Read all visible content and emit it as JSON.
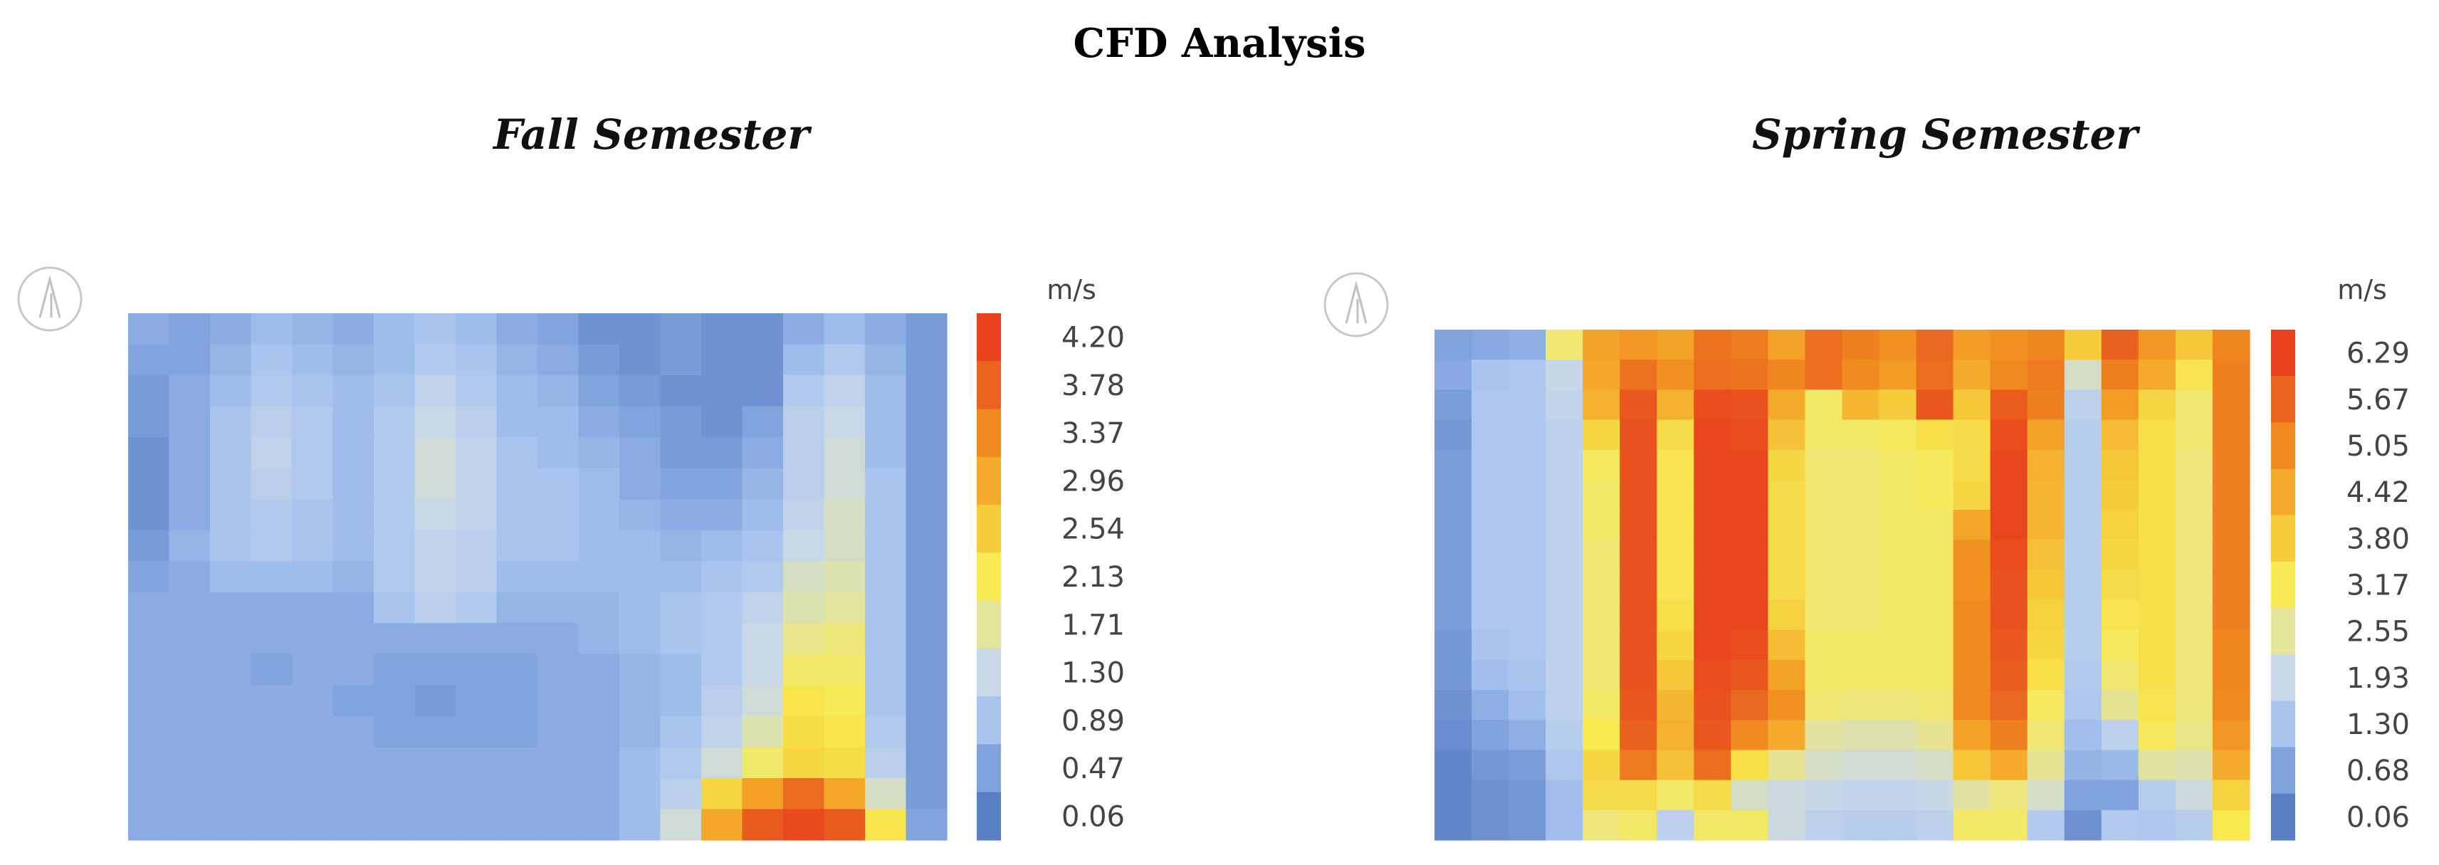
{
  "page_title": "CFD Analysis",
  "icons": {
    "north_arrow": "north-arrow-icon",
    "north_letter": "A"
  },
  "chart_data": [
    {
      "type": "heatmap",
      "title": "Fall Semester",
      "unit": "m/s",
      "colorbar": {
        "ticks": [
          "4.20",
          "3.78",
          "3.37",
          "2.96",
          "2.54",
          "2.13",
          "1.71",
          "1.30",
          "0.89",
          "0.47",
          "0.06"
        ],
        "colors": [
          "#e8411c",
          "#ea6420",
          "#f08a1e",
          "#f4aa2a",
          "#f6cc3c",
          "#f8ea52",
          "#e4e49a",
          "#c8d8e8",
          "#a8c4ef",
          "#7fa2dc",
          "#5a7fc4"
        ],
        "min": 0.06,
        "max": 4.2
      },
      "grid_rows": [
        [
          0.6,
          0.5,
          0.6,
          0.8,
          0.7,
          0.6,
          0.8,
          0.9,
          0.8,
          0.6,
          0.5,
          0.3,
          0.3,
          0.4,
          0.3,
          0.3,
          0.6,
          0.8,
          0.6,
          0.4
        ],
        [
          0.5,
          0.5,
          0.7,
          0.9,
          0.8,
          0.7,
          0.8,
          1.0,
          0.9,
          0.7,
          0.6,
          0.4,
          0.3,
          0.4,
          0.3,
          0.3,
          0.8,
          1.0,
          0.7,
          0.4
        ],
        [
          0.4,
          0.6,
          0.8,
          1.0,
          0.9,
          0.8,
          0.9,
          1.2,
          1.0,
          0.8,
          0.7,
          0.5,
          0.4,
          0.3,
          0.3,
          0.3,
          1.0,
          1.2,
          0.8,
          0.4
        ],
        [
          0.4,
          0.6,
          0.9,
          1.1,
          1.0,
          0.8,
          1.0,
          1.3,
          1.1,
          0.8,
          0.8,
          0.6,
          0.5,
          0.4,
          0.3,
          0.5,
          1.1,
          1.3,
          0.8,
          0.4
        ],
        [
          0.3,
          0.6,
          0.9,
          1.2,
          1.0,
          0.8,
          1.0,
          1.4,
          1.2,
          0.9,
          0.8,
          0.7,
          0.6,
          0.4,
          0.4,
          0.6,
          1.1,
          1.4,
          0.8,
          0.4
        ],
        [
          0.3,
          0.6,
          0.9,
          1.1,
          1.0,
          0.8,
          1.0,
          1.4,
          1.2,
          0.9,
          0.9,
          0.8,
          0.6,
          0.5,
          0.5,
          0.7,
          1.1,
          1.4,
          0.9,
          0.4
        ],
        [
          0.3,
          0.6,
          0.9,
          1.0,
          0.9,
          0.8,
          1.0,
          1.3,
          1.2,
          0.9,
          0.9,
          0.8,
          0.7,
          0.6,
          0.6,
          0.8,
          1.2,
          1.5,
          0.9,
          0.4
        ],
        [
          0.4,
          0.7,
          0.9,
          1.0,
          0.9,
          0.8,
          1.0,
          1.2,
          1.1,
          0.9,
          0.9,
          0.8,
          0.8,
          0.7,
          0.8,
          0.9,
          1.3,
          1.5,
          0.9,
          0.4
        ],
        [
          0.5,
          0.6,
          0.8,
          0.8,
          0.8,
          0.7,
          1.0,
          1.2,
          1.1,
          0.8,
          0.8,
          0.8,
          0.8,
          0.8,
          0.9,
          1.0,
          1.5,
          1.6,
          0.9,
          0.4
        ],
        [
          0.6,
          0.6,
          0.6,
          0.6,
          0.6,
          0.6,
          0.9,
          1.1,
          1.0,
          0.7,
          0.7,
          0.7,
          0.8,
          0.9,
          1.0,
          1.2,
          1.6,
          1.7,
          0.9,
          0.4
        ],
        [
          0.6,
          0.6,
          0.6,
          0.6,
          0.6,
          0.6,
          0.6,
          0.6,
          0.6,
          0.6,
          0.6,
          0.7,
          0.8,
          0.9,
          1.0,
          1.3,
          1.8,
          1.9,
          0.9,
          0.4
        ],
        [
          0.6,
          0.6,
          0.6,
          0.5,
          0.6,
          0.6,
          0.5,
          0.5,
          0.5,
          0.5,
          0.6,
          0.6,
          0.7,
          0.8,
          1.0,
          1.3,
          2.0,
          2.0,
          0.9,
          0.4
        ],
        [
          0.6,
          0.6,
          0.6,
          0.6,
          0.6,
          0.5,
          0.5,
          0.4,
          0.5,
          0.5,
          0.6,
          0.6,
          0.7,
          0.8,
          1.1,
          1.4,
          2.2,
          2.1,
          0.9,
          0.4
        ],
        [
          0.6,
          0.6,
          0.6,
          0.6,
          0.6,
          0.6,
          0.5,
          0.5,
          0.5,
          0.5,
          0.6,
          0.6,
          0.7,
          0.9,
          1.2,
          1.6,
          2.3,
          2.2,
          1.0,
          0.4
        ],
        [
          0.6,
          0.6,
          0.6,
          0.6,
          0.6,
          0.6,
          0.6,
          0.6,
          0.6,
          0.6,
          0.6,
          0.6,
          0.8,
          1.0,
          1.4,
          2.0,
          2.4,
          2.3,
          1.1,
          0.4
        ],
        [
          0.6,
          0.6,
          0.6,
          0.6,
          0.6,
          0.6,
          0.6,
          0.6,
          0.6,
          0.6,
          0.6,
          0.6,
          0.8,
          1.1,
          2.4,
          3.1,
          3.7,
          3.0,
          1.5,
          0.4
        ],
        [
          0.6,
          0.6,
          0.6,
          0.6,
          0.6,
          0.6,
          0.6,
          0.6,
          0.6,
          0.6,
          0.6,
          0.6,
          0.8,
          1.4,
          3.0,
          3.9,
          4.1,
          3.9,
          2.2,
          0.5
        ]
      ]
    },
    {
      "type": "heatmap",
      "title": "Spring Semester",
      "unit": "m/s",
      "colorbar": {
        "ticks": [
          "6.29",
          "5.67",
          "5.05",
          "4.42",
          "3.80",
          "3.17",
          "2.55",
          "1.93",
          "1.30",
          "0.68",
          "0.06"
        ],
        "colors": [
          "#e8411c",
          "#ea6420",
          "#f08a1e",
          "#f4aa2a",
          "#f6cc3c",
          "#f8ea52",
          "#e4e49a",
          "#c8d8e8",
          "#a8c4ef",
          "#7fa2dc",
          "#5a7fc4"
        ],
        "min": 0.06,
        "max": 6.29
      },
      "grid_rows": [
        [
          0.7,
          0.8,
          0.9,
          2.9,
          4.6,
          4.8,
          4.6,
          5.4,
          5.3,
          4.6,
          5.5,
          5.2,
          4.9,
          5.6,
          4.7,
          4.9,
          5.1,
          3.8,
          5.7,
          4.8,
          3.9,
          5.1
        ],
        [
          0.8,
          1.3,
          1.4,
          1.9,
          4.5,
          5.4,
          4.9,
          5.5,
          5.4,
          5.1,
          5.5,
          5.0,
          4.7,
          5.5,
          4.4,
          5.0,
          5.3,
          2.2,
          5.2,
          4.4,
          3.3,
          5.2
        ],
        [
          0.6,
          1.4,
          1.4,
          1.8,
          4.3,
          5.9,
          4.3,
          6.1,
          6.0,
          4.4,
          3.0,
          4.2,
          3.8,
          5.9,
          3.9,
          5.8,
          5.2,
          1.7,
          4.7,
          3.6,
          2.9,
          5.2
        ],
        [
          0.5,
          1.4,
          1.4,
          1.7,
          3.6,
          6.0,
          3.5,
          6.2,
          6.1,
          4.0,
          3.0,
          3.0,
          3.1,
          3.4,
          3.5,
          6.1,
          4.6,
          1.6,
          4.1,
          3.4,
          2.9,
          5.2
        ],
        [
          0.6,
          1.4,
          1.4,
          1.7,
          3.1,
          6.0,
          3.3,
          6.2,
          6.2,
          3.6,
          2.9,
          2.9,
          3.0,
          3.1,
          3.5,
          6.2,
          4.3,
          1.6,
          3.9,
          3.4,
          2.8,
          5.2
        ],
        [
          0.6,
          1.4,
          1.4,
          1.7,
          3.0,
          6.0,
          3.3,
          6.2,
          6.2,
          3.5,
          2.9,
          2.9,
          3.0,
          3.1,
          3.6,
          6.2,
          4.2,
          1.6,
          3.8,
          3.4,
          2.8,
          5.2
        ],
        [
          0.6,
          1.4,
          1.4,
          1.7,
          3.0,
          6.0,
          3.3,
          6.2,
          6.2,
          3.5,
          2.9,
          2.9,
          3.0,
          3.0,
          4.5,
          6.2,
          4.2,
          1.6,
          3.7,
          3.4,
          2.8,
          5.2
        ],
        [
          0.6,
          1.4,
          1.4,
          1.7,
          2.9,
          6.0,
          3.3,
          6.2,
          6.2,
          3.5,
          2.9,
          2.9,
          3.0,
          3.0,
          4.9,
          6.1,
          4.0,
          1.6,
          3.6,
          3.4,
          2.8,
          5.2
        ],
        [
          0.6,
          1.4,
          1.4,
          1.7,
          2.9,
          6.0,
          3.3,
          6.2,
          6.2,
          3.5,
          2.9,
          2.9,
          3.0,
          3.0,
          4.9,
          6.0,
          3.9,
          1.6,
          3.5,
          3.4,
          2.8,
          5.2
        ],
        [
          0.6,
          1.4,
          1.4,
          1.7,
          2.9,
          6.0,
          3.4,
          6.2,
          6.2,
          3.7,
          2.9,
          2.9,
          3.0,
          3.0,
          5.0,
          6.0,
          3.7,
          1.6,
          3.3,
          3.4,
          2.8,
          5.2
        ],
        [
          0.5,
          1.3,
          1.4,
          1.7,
          2.9,
          6.0,
          3.6,
          6.2,
          6.1,
          4.1,
          3.0,
          3.0,
          3.0,
          3.0,
          5.0,
          5.9,
          3.6,
          1.6,
          3.1,
          3.4,
          2.8,
          5.1
        ],
        [
          0.5,
          1.2,
          1.3,
          1.7,
          2.9,
          6.0,
          3.9,
          6.1,
          5.9,
          4.6,
          3.0,
          3.0,
          3.0,
          3.0,
          5.0,
          5.8,
          3.4,
          1.5,
          2.9,
          3.4,
          2.8,
          5.1
        ],
        [
          0.4,
          0.9,
          1.2,
          1.7,
          3.0,
          5.9,
          4.2,
          6.0,
          5.6,
          4.9,
          2.9,
          2.8,
          2.8,
          2.9,
          5.0,
          5.6,
          3.1,
          1.4,
          2.6,
          3.3,
          2.8,
          5.0
        ],
        [
          0.3,
          0.7,
          0.9,
          1.6,
          3.2,
          5.7,
          4.3,
          5.9,
          5.0,
          4.4,
          2.5,
          2.4,
          2.4,
          2.6,
          4.6,
          5.2,
          2.9,
          1.2,
          1.7,
          3.1,
          2.7,
          4.8
        ],
        [
          0.2,
          0.5,
          0.6,
          1.4,
          3.6,
          5.3,
          4.0,
          5.5,
          3.4,
          2.6,
          2.2,
          2.1,
          2.1,
          2.2,
          3.9,
          4.4,
          2.6,
          1.0,
          1.1,
          2.5,
          2.4,
          4.4
        ],
        [
          0.2,
          0.4,
          0.5,
          1.2,
          3.5,
          3.5,
          3.0,
          3.5,
          2.2,
          2.0,
          1.9,
          1.8,
          1.8,
          1.9,
          2.5,
          2.8,
          2.2,
          0.7,
          0.7,
          1.6,
          2.0,
          3.7
        ],
        [
          0.2,
          0.4,
          0.5,
          1.2,
          2.8,
          3.0,
          1.7,
          3.0,
          3.0,
          2.0,
          1.7,
          1.6,
          1.6,
          1.7,
          3.0,
          3.0,
          1.5,
          0.4,
          1.5,
          1.4,
          1.6,
          3.2
        ]
      ]
    }
  ]
}
